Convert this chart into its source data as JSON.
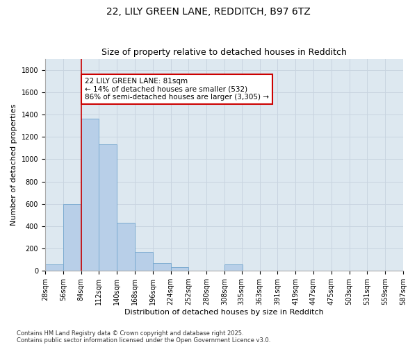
{
  "title1": "22, LILY GREEN LANE, REDDITCH, B97 6TZ",
  "title2": "Size of property relative to detached houses in Redditch",
  "xlabel": "Distribution of detached houses by size in Redditch",
  "ylabel": "Number of detached properties",
  "bar_bins": [
    28,
    56,
    84,
    112,
    140,
    168,
    196,
    224,
    252,
    280,
    308,
    335,
    363,
    391,
    419,
    447,
    475,
    503,
    531,
    559,
    587
  ],
  "bar_labels": [
    "28sqm",
    "56sqm",
    "84sqm",
    "112sqm",
    "140sqm",
    "168sqm",
    "196sqm",
    "224sqm",
    "252sqm",
    "280sqm",
    "308sqm",
    "335sqm",
    "363sqm",
    "391sqm",
    "419sqm",
    "447sqm",
    "475sqm",
    "503sqm",
    "531sqm",
    "559sqm",
    "587sqm"
  ],
  "bar_values": [
    60,
    600,
    1360,
    1130,
    430,
    170,
    70,
    35,
    0,
    0,
    60,
    0,
    0,
    0,
    0,
    0,
    0,
    0,
    0,
    0
  ],
  "bar_color": "#b8cfe8",
  "bar_edge_color": "#7aaad0",
  "property_line_x": 84,
  "property_line_color": "#cc0000",
  "annotation_text": "22 LILY GREEN LANE: 81sqm\n← 14% of detached houses are smaller (532)\n86% of semi-detached houses are larger (3,305) →",
  "annotation_box_color": "white",
  "annotation_box_edge_color": "#cc0000",
  "ylim": [
    0,
    1900
  ],
  "yticks": [
    0,
    200,
    400,
    600,
    800,
    1000,
    1200,
    1400,
    1600,
    1800
  ],
  "grid_color": "#c8d4e0",
  "bg_color": "#dde8f0",
  "title_fontsize": 10,
  "subtitle_fontsize": 9,
  "axis_label_fontsize": 8,
  "tick_fontsize": 7,
  "footer_text": "Contains HM Land Registry data © Crown copyright and database right 2025.\nContains public sector information licensed under the Open Government Licence v3.0."
}
